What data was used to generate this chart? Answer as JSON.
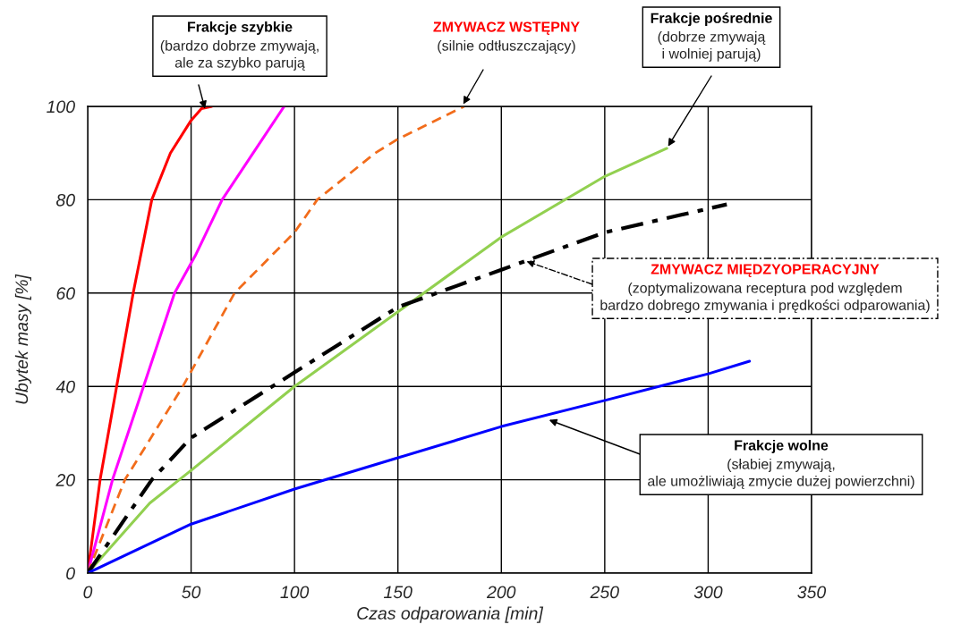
{
  "chart_data": {
    "type": "line",
    "xlabel": "Czas odparowania [min]",
    "ylabel": "Ubytek masy [%]",
    "xlim": [
      0,
      350
    ],
    "ylim": [
      0,
      100
    ],
    "xticks": [
      0,
      50,
      100,
      150,
      200,
      250,
      300,
      350
    ],
    "yticks": [
      0,
      20,
      40,
      60,
      80,
      100
    ],
    "grid": true,
    "legend": false,
    "series": [
      {
        "color": "#ff0000",
        "line_style": "solid",
        "x": [
          0,
          6,
          14,
          22,
          31,
          40,
          50,
          55,
          60
        ],
        "values": [
          0,
          20,
          40,
          60,
          80,
          90,
          97,
          99.5,
          100
        ]
      },
      {
        "color": "#ff00ff",
        "line_style": "solid",
        "x": [
          0,
          12,
          27,
          42,
          52,
          65,
          80,
          95
        ],
        "values": [
          0,
          20,
          40,
          60,
          68,
          80,
          90,
          100
        ]
      },
      {
        "color": "#f26c1b",
        "line_style": "dashed",
        "x": [
          0,
          18,
          46,
          71,
          100,
          111,
          139,
          150,
          182
        ],
        "values": [
          0,
          20,
          40,
          60,
          73,
          80,
          90,
          93,
          100
        ]
      },
      {
        "color": "#92d050",
        "line_style": "solid",
        "x": [
          0,
          30,
          50,
          100,
          150,
          200,
          250,
          280
        ],
        "values": [
          0,
          15,
          22,
          40,
          56,
          72,
          85,
          91
        ]
      },
      {
        "color": "#000000",
        "line_style": "dashdot",
        "x": [
          0,
          31,
          50,
          100,
          150,
          200,
          250,
          309
        ],
        "values": [
          0,
          20,
          29,
          43,
          57,
          65,
          73,
          79
        ]
      },
      {
        "color": "#0000ff",
        "line_style": "solid",
        "x": [
          0,
          50,
          100,
          150,
          200,
          250,
          300,
          320
        ],
        "values": [
          0,
          10.5,
          18,
          24.7,
          31.4,
          37,
          42.7,
          45.4
        ]
      }
    ],
    "annotations": [
      {
        "text": "Frakcje szybkie\n(bardzo dobrze zmywają,\nale za szybko parują",
        "x": 57,
        "y": 99
      },
      {
        "text": "ZMYWACZ WSTĘPNY\n(silnie odtłuszczający)",
        "x": 181,
        "y": 100
      },
      {
        "text": "Frakcje pośrednie\n(dobrze zmywają\ni wolniej parują)",
        "x": 280,
        "y": 91
      },
      {
        "text": "ZMYWACZ MIĘDZYOPERACYJNY\n(zoptymalizowana receptura pod względem\nbardzo dobrego zmywania i prędkości odparowania)",
        "x": 211,
        "y": 67
      },
      {
        "text": "Frakcje wolne\n(słabiej zmywają,\nale umożliwiają zmycie dużej powierzchni)",
        "x": 222,
        "y": 33
      }
    ]
  }
}
